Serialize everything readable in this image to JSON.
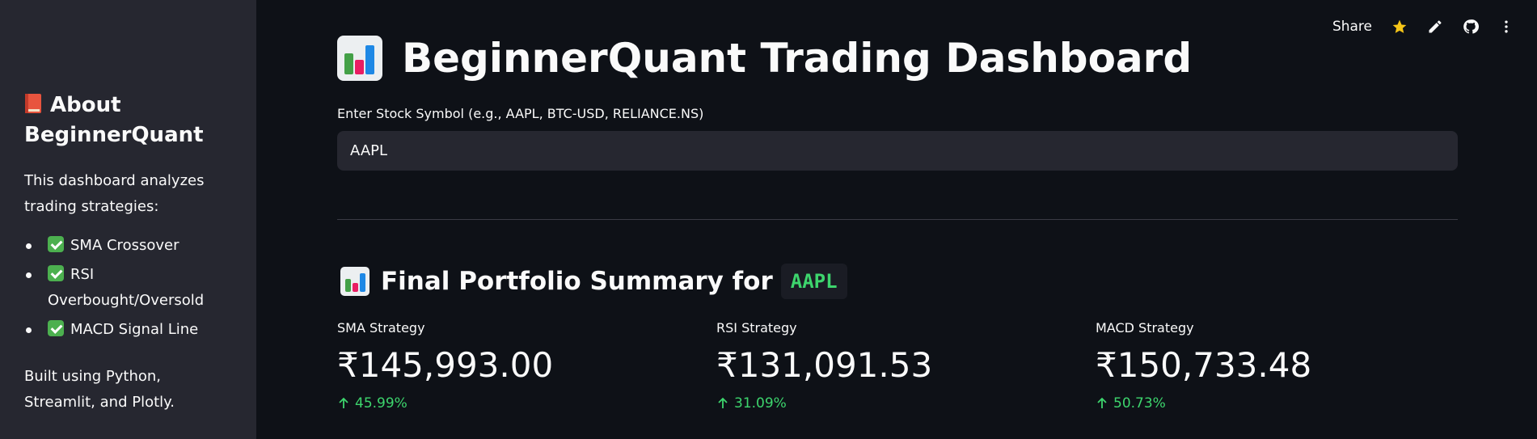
{
  "sidebar": {
    "title": "About BeginnerQuant",
    "intro": "This dashboard analyzes trading strategies:",
    "items": [
      {
        "label": "SMA Crossover"
      },
      {
        "label": "RSI Overbought/Oversold"
      },
      {
        "label": "MACD Signal Line"
      }
    ],
    "footer": "Built using Python, Streamlit, and Plotly."
  },
  "toolbar": {
    "share_label": "Share",
    "icons": [
      "star-icon",
      "pencil-icon",
      "github-icon",
      "more-vertical-icon"
    ]
  },
  "main": {
    "title": "BeginnerQuant Trading Dashboard",
    "input_label": "Enter Stock Symbol (e.g., AAPL, BTC-USD, RELIANCE.NS)",
    "input_value": "AAPL",
    "summary_heading": "Final Portfolio Summary for",
    "summary_symbol": "AAPL",
    "metrics": [
      {
        "label": "SMA Strategy",
        "value": "₹145,993.00",
        "delta": "45.99%"
      },
      {
        "label": "RSI Strategy",
        "value": "₹131,091.53",
        "delta": "31.09%"
      },
      {
        "label": "MACD Strategy",
        "value": "₹150,733.48",
        "delta": "50.73%"
      }
    ]
  },
  "colors": {
    "background": "#0e1117",
    "sidebar": "#262730",
    "positive": "#3dd56d",
    "star": "#f5c518"
  }
}
